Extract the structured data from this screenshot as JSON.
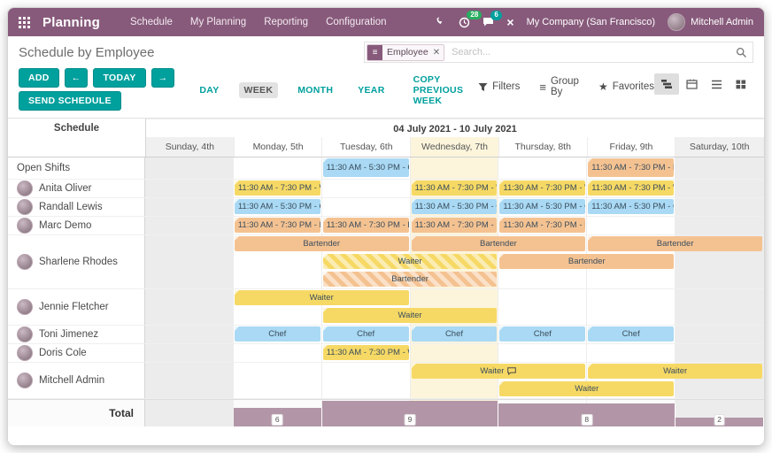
{
  "navbar": {
    "app_name": "Planning",
    "menu": [
      "Schedule",
      "My Planning",
      "Reporting",
      "Configuration"
    ],
    "activity_count": "28",
    "message_count": "6",
    "company": "My Company (San Francisco)",
    "user": "Mitchell Admin"
  },
  "breadcrumb": {
    "title": "Schedule by Employee"
  },
  "search": {
    "facet_label": "Employee",
    "placeholder": "Search..."
  },
  "toolbar": {
    "add_label": "ADD",
    "today_label": "TODAY",
    "send_schedule_label": "SEND SCHEDULE",
    "scales": [
      "DAY",
      "WEEK",
      "MONTH",
      "YEAR"
    ],
    "active_scale": "WEEK",
    "copy_previous_week_label": "COPY PREVIOUS WEEK",
    "filters_label": "Filters",
    "group_by_label": "Group By",
    "favorites_label": "Favorites"
  },
  "gantt": {
    "corner_label": "Schedule",
    "range_label": "04 July 2021 - 10 July 2021",
    "days": [
      "Sunday, 4th",
      "Monday, 5th",
      "Tuesday, 6th",
      "Wednesday, 7th",
      "Thursday, 8th",
      "Friday, 9th",
      "Saturday, 10th"
    ],
    "today_index": 3,
    "weekend_indices": [
      0,
      6
    ],
    "rows": [
      {
        "name": "Open Shifts",
        "avatar": false,
        "lanes": [
          [
            {
              "start": 2,
              "span": 1,
              "label": "11:30 AM - 5:30 PM - Ch...",
              "color": "blue"
            },
            {
              "start": 5,
              "span": 1,
              "label": "11:30 AM - 7:30 PM - Ba...",
              "color": "orange"
            }
          ]
        ]
      },
      {
        "name": "Anita Oliver",
        "avatar": true,
        "lanes": [
          [
            {
              "start": 1,
              "span": 1,
              "label": "11:30 AM - 7:30 PM - Wa...",
              "color": "yellow"
            },
            {
              "start": 3,
              "span": 1,
              "label": "11:30 AM - 7:30 PM - Wa...",
              "color": "yellow"
            },
            {
              "start": 4,
              "span": 1,
              "label": "11:30 AM - 7:30 PM - Wa...",
              "color": "yellow"
            },
            {
              "start": 5,
              "span": 1,
              "label": "11:30 AM - 7:30 PM - Wa...",
              "color": "yellow"
            }
          ]
        ]
      },
      {
        "name": "Randall Lewis",
        "avatar": true,
        "lanes": [
          [
            {
              "start": 1,
              "span": 1,
              "label": "11:30 AM - 5:30 PM - Chef",
              "color": "blue"
            },
            {
              "start": 3,
              "span": 1,
              "label": "11:30 AM - 5:30 PM - Chef",
              "color": "blue"
            },
            {
              "start": 4,
              "span": 1,
              "label": "11:30 AM - 5:30 PM - Chef",
              "color": "blue"
            },
            {
              "start": 5,
              "span": 1,
              "label": "11:30 AM - 5:30 PM - Chef",
              "color": "blue"
            }
          ]
        ]
      },
      {
        "name": "Marc Demo",
        "avatar": true,
        "lanes": [
          [
            {
              "start": 1,
              "span": 1,
              "label": "11:30 AM - 7:30 PM - Ba...",
              "color": "orange"
            },
            {
              "start": 2,
              "span": 1,
              "label": "11:30 AM - 7:30 PM - Ba...",
              "color": "orange"
            },
            {
              "start": 3,
              "span": 1,
              "label": "11:30 AM - 7:30 PM - Ba...",
              "color": "orange"
            },
            {
              "start": 4,
              "span": 1,
              "label": "11:30 AM - 7:30 PM - Ba...",
              "color": "orange"
            }
          ]
        ]
      },
      {
        "name": "Sharlene Rhodes",
        "avatar": true,
        "lanes": [
          [
            {
              "start": 1,
              "span": 2,
              "label": "Bartender",
              "color": "orange",
              "center": true
            },
            {
              "start": 3,
              "span": 2,
              "label": "Bartender",
              "color": "orange",
              "center": true
            },
            {
              "start": 5,
              "span": 2,
              "label": "Bartender",
              "color": "orange",
              "center": true
            }
          ],
          [
            {
              "start": 2,
              "span": 2,
              "label": "Waiter",
              "color": "yellow",
              "striped": true,
              "center": true
            },
            {
              "start": 4,
              "span": 2,
              "label": "Bartender",
              "color": "orange",
              "center": true
            }
          ],
          [
            {
              "start": 2,
              "span": 2,
              "label": "Bartender",
              "color": "orange",
              "striped": true,
              "center": true
            }
          ]
        ]
      },
      {
        "name": "Jennie Fletcher",
        "avatar": true,
        "lanes": [
          [
            {
              "start": 1,
              "span": 2,
              "label": "Waiter",
              "color": "yellow",
              "center": true
            }
          ],
          [
            {
              "start": 2,
              "span": 2,
              "label": "Waiter",
              "color": "yellow",
              "center": true
            }
          ]
        ]
      },
      {
        "name": "Toni Jimenez",
        "avatar": true,
        "lanes": [
          [
            {
              "start": 1,
              "span": 1,
              "label": "Chef",
              "color": "blue",
              "center": true
            },
            {
              "start": 2,
              "span": 1,
              "label": "Chef",
              "color": "blue",
              "center": true
            },
            {
              "start": 3,
              "span": 1,
              "label": "Chef",
              "color": "blue",
              "center": true
            },
            {
              "start": 4,
              "span": 1,
              "label": "Chef",
              "color": "blue",
              "center": true
            },
            {
              "start": 5,
              "span": 1,
              "label": "Chef",
              "color": "blue",
              "center": true
            }
          ]
        ]
      },
      {
        "name": "Doris Cole",
        "avatar": true,
        "lanes": [
          [
            {
              "start": 2,
              "span": 1,
              "label": "11:30 AM - 7:30 PM - Wa...",
              "color": "yellow"
            }
          ]
        ]
      },
      {
        "name": "Mitchell Admin",
        "avatar": true,
        "lanes": [
          [
            {
              "start": 3,
              "span": 2,
              "label": "Waiter",
              "color": "yellow",
              "center": true,
              "chat": true
            },
            {
              "start": 5,
              "span": 2,
              "label": "Waiter",
              "color": "yellow",
              "center": true
            }
          ],
          [
            {
              "start": 4,
              "span": 2,
              "label": "Waiter",
              "color": "yellow",
              "center": true
            }
          ]
        ]
      }
    ],
    "total_label": "Total",
    "totals": [
      {
        "start": 1,
        "span": 1,
        "value": 6
      },
      {
        "start": 2,
        "span": 2,
        "value": 9
      },
      {
        "start": 4,
        "span": 2,
        "value": 8
      },
      {
        "start": 6,
        "span": 1,
        "value": 2
      }
    ],
    "max_total": 9
  },
  "colors": {
    "navbar": "#875a7b",
    "accent_teal": "#00a09d",
    "block_blue": "#a9d9f4",
    "block_yellow": "#f6d965",
    "block_orange": "#f4c291",
    "today_bg": "#fcf5dc",
    "weekend_bg": "#ececec",
    "total_bar": "#b296a8",
    "activity_badge": "#27ae60",
    "message_badge": "#00a09d"
  }
}
